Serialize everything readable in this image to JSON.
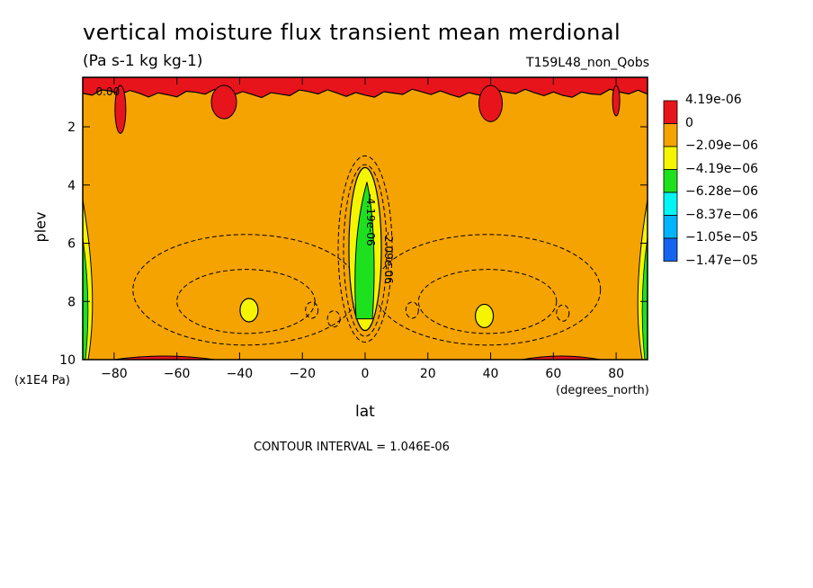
{
  "title": "vertical moisture flux transient mean merdional",
  "units": "(Pa s-1 kg kg-1)",
  "run_name": "T159L48_non_Qobs",
  "contour_interval": "CONTOUR INTERVAL = 1.046E-06",
  "chart_data": {
    "type": "heatmap",
    "xlabel": "lat",
    "x_unit": "(degrees_north)",
    "ylabel": "plev",
    "y_unit": "(x1E4 Pa)",
    "xlim": [
      -90,
      90
    ],
    "ylim": [
      10,
      0.3
    ],
    "x_ticks": [
      "-80",
      "-60",
      "-40",
      "-20",
      "0",
      "20",
      "40",
      "60",
      "80"
    ],
    "x_tick_values": [
      -80,
      -60,
      -40,
      -20,
      0,
      20,
      40,
      60,
      80
    ],
    "y_ticks": [
      "2",
      "4",
      "6",
      "8",
      "10"
    ],
    "y_tick_values": [
      2,
      4,
      6,
      8,
      10
    ],
    "contour_labels": [
      "0.00",
      "-4.19e-06",
      "-2.09e-06"
    ],
    "legend": [
      {
        "label": "4.19e-06",
        "color": "#e8141b"
      },
      {
        "label": "0",
        "color": "#f5a300"
      },
      {
        "label": "−2.09e−06",
        "color": "#f5f500"
      },
      {
        "label": "−4.19e−06",
        "color": "#1ee11e"
      },
      {
        "label": "−6.28e−06",
        "color": "#00f5f5"
      },
      {
        "label": "−8.37e−06",
        "color": "#00b4ff"
      },
      {
        "label": "−1.05e−05",
        "color": "#1464f0"
      },
      {
        "label": "−1.47e−05",
        "color": "#ffffff"
      }
    ],
    "regions": {
      "background": {
        "color": "#f5a300"
      },
      "equatorial_min": {
        "lat_center": 0,
        "plev_top": 3,
        "plev_bottom": 9.4,
        "min_value": -4.19e-06
      },
      "subtropical_min_s": {
        "lat": -37,
        "plev": 8.3
      },
      "subtropical_min_n": {
        "lat": 38,
        "plev": 8.5
      },
      "positive_top_band": {
        "plev_top": 0.3,
        "plev_bottom": 0.9
      },
      "positive_surface_s": {
        "lat_range": [
          -80,
          -48
        ],
        "plev": 10
      },
      "positive_surface_n": {
        "lat_range": [
          50,
          75
        ],
        "plev": 10
      }
    }
  }
}
